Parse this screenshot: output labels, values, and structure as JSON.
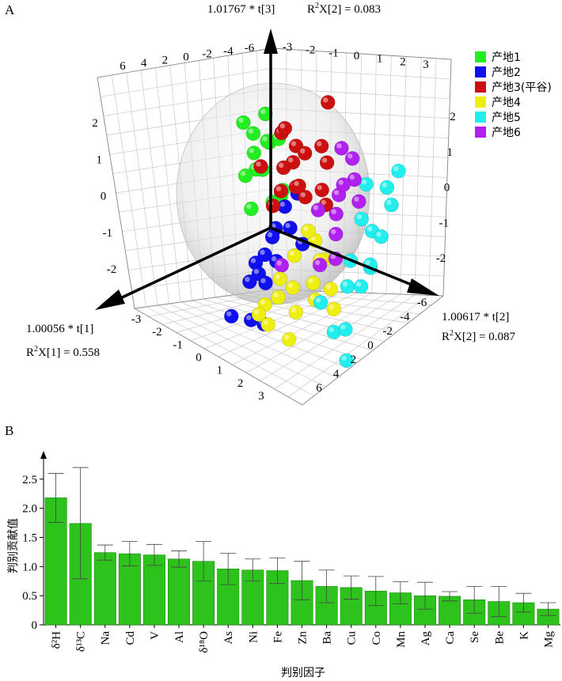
{
  "chart_data": [
    {
      "type": "scatter",
      "panel_label": "A",
      "axis_labels": {
        "t1": "1.00056 * t[1]",
        "t2": "1.00617 * t[2]",
        "t3": "1.01767 * t[3]",
        "r2x1_prefix": "R",
        "r2x1_suffix": "X[1] = 0.558",
        "r2x2_prefix": "R",
        "r2x2_suffix": "X[2] = 0.087",
        "r2x3_prefix": "R",
        "r2x3_suffix": "X[2] = 0.083",
        "sup": "2"
      },
      "ticks": {
        "t1": [
          "-3",
          "-2",
          "-1",
          "0",
          "1",
          "2",
          "3"
        ],
        "t2": [
          "-6",
          "-4",
          "-2",
          "0",
          "2",
          "4",
          "6"
        ],
        "t3_left": [
          "2",
          "1",
          "0",
          "-1",
          "-2"
        ],
        "t3_right": [
          "2",
          "1",
          "0",
          "-1",
          "-2"
        ],
        "top_left": [
          "6",
          "4",
          "2",
          "0",
          "-2",
          "-4",
          "-6"
        ],
        "top_right": [
          "-3",
          "-2",
          "-1",
          "0",
          "1",
          "2",
          "3"
        ]
      },
      "legend": [
        {
          "label": "产地1",
          "color": "#22ee22"
        },
        {
          "label": "产地2",
          "color": "#1010ee"
        },
        {
          "label": "产地3(平谷)",
          "color": "#cc1010"
        },
        {
          "label": "产地4",
          "color": "#eeee10"
        },
        {
          "label": "产地5",
          "color": "#22eeee"
        },
        {
          "label": "产地6",
          "color": "#b020ee"
        }
      ],
      "series": [
        {
          "name": "产地1",
          "points": [
            [
              -1.5,
              -3.5,
              1.0
            ],
            [
              -1.9,
              -3.2,
              1.1
            ],
            [
              -1.4,
              -2.9,
              0.5
            ],
            [
              -1.2,
              -2.5,
              0.3
            ],
            [
              -1.7,
              -3.0,
              0.0
            ],
            [
              -2.2,
              -3.5,
              0.3
            ],
            [
              -2.1,
              -3.2,
              -0.9
            ],
            [
              -1.8,
              -2.4,
              -0.5
            ],
            [
              -1.5,
              -2.5,
              0.8
            ],
            [
              -1.0,
              -2.3,
              1.2
            ],
            [
              -1.3,
              -3.1,
              0.0
            ],
            [
              -2.0,
              -2.8,
              0.6
            ],
            [
              -1.6,
              -2.0,
              -0.2
            ],
            [
              -1.2,
              -2.7,
              -0.6
            ]
          ]
        },
        {
          "name": "产地2",
          "points": [
            [
              -1.8,
              -2.0,
              -1.1
            ],
            [
              -0.8,
              -1.5,
              -1.2
            ],
            [
              -0.5,
              -1.0,
              -1.6
            ],
            [
              -0.3,
              -0.4,
              -0.4
            ],
            [
              0.4,
              -0.2,
              -1.9
            ],
            [
              -0.6,
              -0.7,
              -1.1
            ],
            [
              -0.9,
              -1.2,
              -0.6
            ],
            [
              -1.4,
              -1.6,
              -0.4
            ],
            [
              -0.6,
              0.4,
              -0.5
            ],
            [
              -0.2,
              -1.2,
              -1.5
            ],
            [
              0.1,
              -1.5,
              -2.2
            ],
            [
              -0.7,
              -1.6,
              -1.6
            ],
            [
              -1.0,
              -2.2,
              -1.6
            ],
            [
              -0.2,
              -0.6,
              -2.3
            ],
            [
              -0.4,
              0.5,
              0.7
            ]
          ]
        },
        {
          "name": "产地3(平谷)",
          "points": [
            [
              -0.9,
              1.0,
              2.6
            ],
            [
              -0.6,
              1.2,
              1.8
            ],
            [
              -0.3,
              1.9,
              1.7
            ],
            [
              -0.6,
              0.5,
              1.5
            ],
            [
              -0.6,
              0.0,
              1.2
            ],
            [
              -0.6,
              -0.4,
              1.0
            ],
            [
              -0.3,
              0.6,
              0.9
            ],
            [
              -0.1,
              1.3,
              0.9
            ],
            [
              -0.5,
              -1.2,
              0.9
            ],
            [
              0.3,
              0.9,
              1.1
            ],
            [
              0.2,
              1.5,
              1.3
            ],
            [
              -0.7,
              -0.5,
              1.8
            ],
            [
              -0.4,
              1.7,
              0.7
            ],
            [
              -0.1,
              2.0,
              1.2
            ],
            [
              -0.8,
              -0.8,
              1.6
            ],
            [
              0.0,
              0.1,
              0.5
            ],
            [
              -1.0,
              -0.5,
              1.3
            ]
          ]
        },
        {
          "name": "产地4",
          "points": [
            [
              0.0,
              1.0,
              -0.4
            ],
            [
              0.7,
              0.6,
              -1.5
            ],
            [
              0.9,
              1.3,
              -1.5
            ],
            [
              0.6,
              0.7,
              -1.3
            ],
            [
              0.3,
              1.4,
              -0.9
            ],
            [
              0.4,
              2.5,
              -0.9
            ],
            [
              0.2,
              1.9,
              0.4
            ],
            [
              0.4,
              2.7,
              0.0
            ],
            [
              0.6,
              2.0,
              -1.2
            ],
            [
              1.1,
              2.5,
              -1.5
            ],
            [
              0.9,
              1.8,
              -0.4
            ],
            [
              0.6,
              3.6,
              -0.8
            ],
            [
              -0.1,
              2.1,
              -0.3
            ],
            [
              0.9,
              3.2,
              -0.2
            ],
            [
              0.3,
              3.0,
              -0.6
            ],
            [
              -0.3,
              1.4,
              -0.1
            ],
            [
              0.5,
              1.1,
              -1.1
            ]
          ]
        },
        {
          "name": "产地5",
          "points": [
            [
              -0.7,
              3.8,
              1.4
            ],
            [
              -0.5,
              4.3,
              1.2
            ],
            [
              -0.3,
              3.8,
              0.6
            ],
            [
              -0.4,
              3.2,
              0.7
            ],
            [
              0.0,
              4.2,
              0.0
            ],
            [
              0.2,
              4.5,
              0.2
            ],
            [
              0.6,
              4.3,
              0.4
            ],
            [
              0.3,
              3.7,
              -0.4
            ],
            [
              0.8,
              4.4,
              -1.0
            ],
            [
              0.9,
              4.6,
              -1.6
            ],
            [
              0.6,
              3.6,
              -1.3
            ],
            [
              0.7,
              3.2,
              -0.7
            ],
            [
              -0.5,
              4.6,
              2.0
            ],
            [
              -0.4,
              3.4,
              1.5
            ],
            [
              -0.1,
              4.5,
              0.7
            ],
            [
              0.7,
              4.9,
              0.0
            ]
          ]
        },
        {
          "name": "产地6",
          "points": [
            [
              -0.6,
              2.5,
              1.8
            ],
            [
              -0.4,
              2.9,
              1.5
            ],
            [
              -0.3,
              2.4,
              1.1
            ],
            [
              -0.1,
              2.6,
              0.8
            ],
            [
              0.1,
              2.9,
              0.5
            ],
            [
              -0.5,
              2.2,
              2.0
            ],
            [
              0.3,
              3.2,
              0.1
            ],
            [
              -0.2,
              3.4,
              1.2
            ],
            [
              0.6,
              1.4,
              -0.3
            ],
            [
              0.4,
              2.7,
              -0.1
            ],
            [
              -0.1,
              2.9,
              1.5
            ],
            [
              0.0,
              2.0,
              0.8
            ]
          ]
        }
      ]
    },
    {
      "type": "bar",
      "panel_label": "B",
      "categories": [
        "δ²H",
        "δ¹³C",
        "Na",
        "Cd",
        "V",
        "Al",
        "δ¹⁸O",
        "As",
        "Ni",
        "Fe",
        "Zn",
        "Ba",
        "Cu",
        "Co",
        "Mn",
        "Ag",
        "Ca",
        "Se",
        "Be",
        "K",
        "Mg"
      ],
      "values": [
        2.18,
        1.74,
        1.24,
        1.22,
        1.2,
        1.13,
        1.09,
        0.96,
        0.94,
        0.93,
        0.76,
        0.66,
        0.64,
        0.58,
        0.55,
        0.5,
        0.49,
        0.43,
        0.4,
        0.38,
        0.27
      ],
      "error_high": [
        2.6,
        2.7,
        1.37,
        1.43,
        1.38,
        1.27,
        1.43,
        1.23,
        1.13,
        1.15,
        1.09,
        0.94,
        0.84,
        0.83,
        0.74,
        0.73,
        0.57,
        0.66,
        0.66,
        0.54,
        0.38
      ],
      "error_low": [
        1.76,
        0.79,
        1.11,
        1.01,
        1.02,
        0.99,
        0.75,
        0.69,
        0.75,
        0.71,
        0.43,
        0.38,
        0.44,
        0.33,
        0.36,
        0.27,
        0.41,
        0.2,
        0.14,
        0.22,
        0.16
      ],
      "ylim": [
        0,
        2.85
      ],
      "yticks": [
        "0",
        "0.5",
        "1.0",
        "1.5",
        "2.0",
        "2.5"
      ],
      "ylabel": "判别贡献值",
      "xlabel": "判别因子",
      "bar_color": "#2ec21c"
    }
  ],
  "colors": {
    "axis": "#000000",
    "grid": "#c8c8c8",
    "sphere": "#e4e4e4"
  }
}
